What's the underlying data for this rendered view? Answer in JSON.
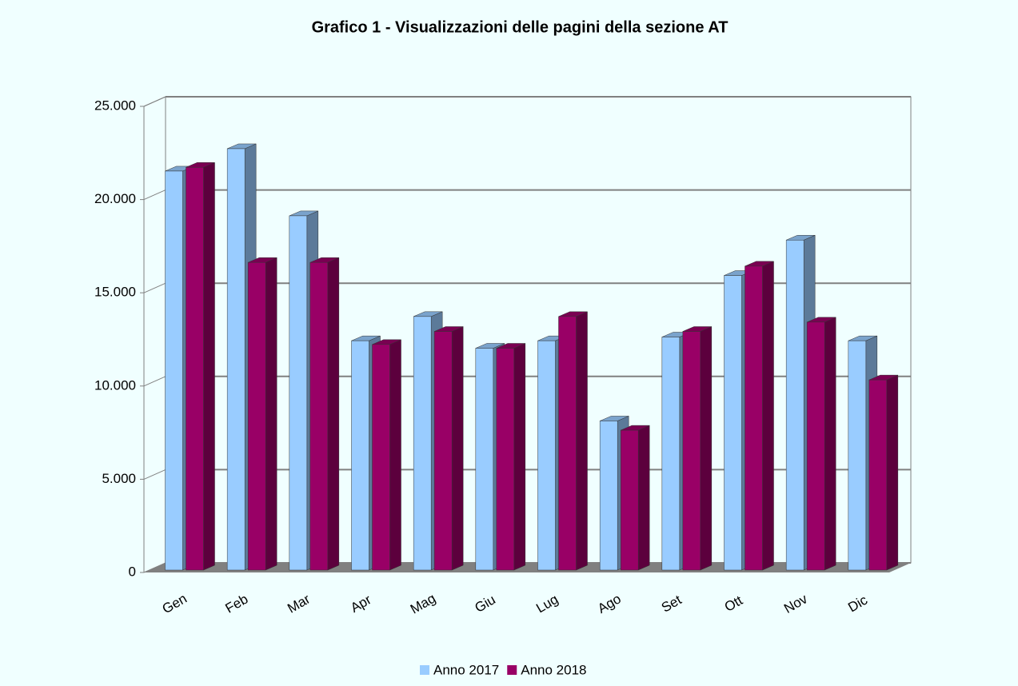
{
  "chart_data": {
    "type": "bar3d",
    "title": "Grafico 1 - Visualizzazioni delle pagini della sezione AT",
    "categories": [
      "Gen",
      "Feb",
      "Mar",
      "Apr",
      "Mag",
      "Giu",
      "Lug",
      "Ago",
      "Set",
      "Ott",
      "Nov",
      "Dic"
    ],
    "series": [
      {
        "name": "Anno 2017",
        "color": "#99ccff",
        "values": [
          21400,
          22600,
          19000,
          12300,
          13600,
          11900,
          12300,
          8000,
          12500,
          15800,
          17700,
          12300
        ]
      },
      {
        "name": "Anno 2018",
        "color": "#990066",
        "values": [
          21600,
          16500,
          16500,
          12100,
          12800,
          11900,
          13600,
          7500,
          12800,
          16300,
          13300,
          10200
        ]
      }
    ],
    "ylim": [
      0,
      25000
    ],
    "yticks": [
      0,
      {
        "value": 5000,
        "label": "5.000"
      },
      {
        "value": 10000,
        "label": "10.000"
      },
      {
        "value": 15000,
        "label": "15.000"
      },
      {
        "value": 20000,
        "label": "20.000"
      },
      {
        "value": 25000,
        "label": "25.000"
      }
    ],
    "grid": true,
    "legend": "bottom"
  }
}
